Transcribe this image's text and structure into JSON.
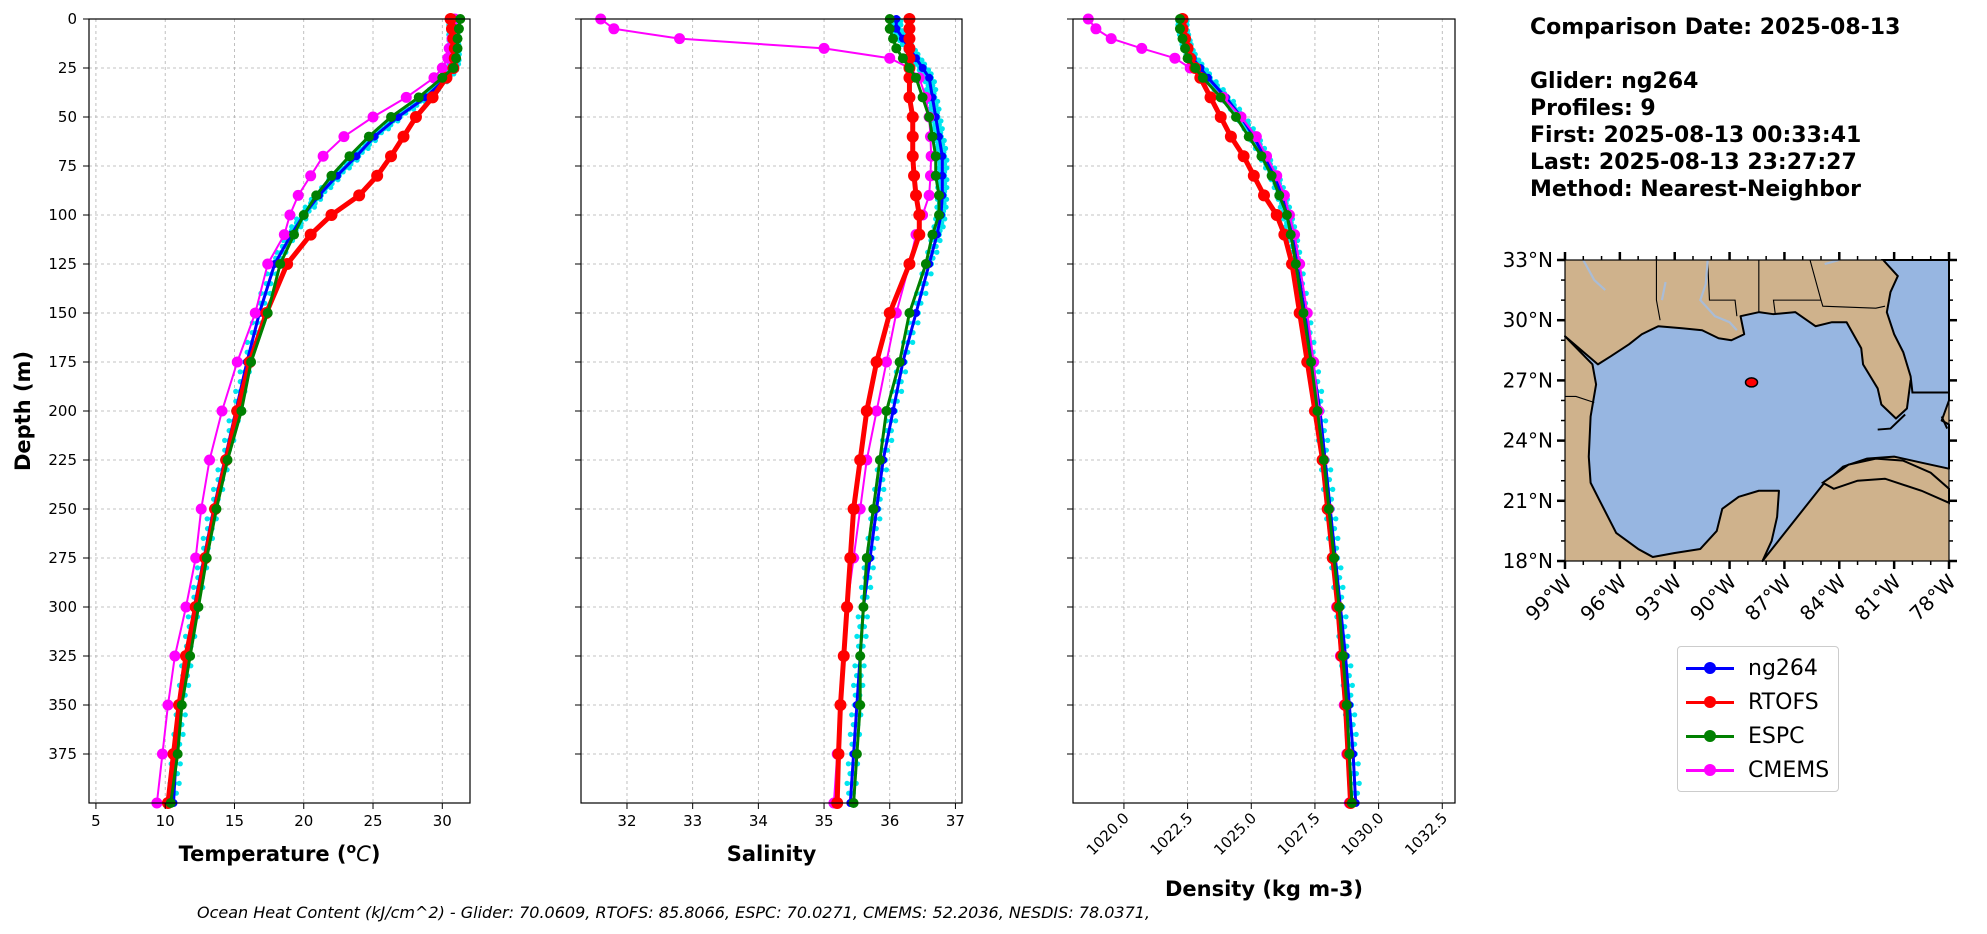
{
  "title": {
    "date_line": "Comparison Date: 2025-08-13",
    "glider_line": "Glider: ng264",
    "profiles_line": "Profiles: 9",
    "first_line": "First: 2025-08-13 00:33:41",
    "last_line": "Last: 2025-08-13 23:27:27",
    "method_line": "Method: Nearest-Neighbor"
  },
  "footer": "Ocean Heat Content (kJ/cm^2) - Glider: 70.0609,  RTOFS: 85.8066,  ESPC: 70.0271,  CMEMS: 52.2036,  NESDIS: 78.0371,",
  "legend": [
    {
      "label": "ng264",
      "color": "#0000ff"
    },
    {
      "label": "RTOFS",
      "color": "#ff0000"
    },
    {
      "label": "ESPC",
      "color": "#008000"
    },
    {
      "label": "CMEMS",
      "color": "#ff00ff"
    }
  ],
  "colors": {
    "glider": "#0000ff",
    "glider_alt": "#00e5ee",
    "rtofs": "#ff0000",
    "espc": "#008000",
    "cmems": "#ff00ff",
    "ocean": "#97b6e1",
    "land": "#cfb28c",
    "river": "#a9bcd6"
  },
  "map": {
    "lat_ticks": [
      "33°N",
      "30°N",
      "27°N",
      "24°N",
      "21°N",
      "18°N"
    ],
    "lon_ticks": [
      "99°W",
      "96°W",
      "93°W",
      "90°W",
      "87°W",
      "84°W",
      "81°W",
      "78°W"
    ],
    "lat_range": [
      18,
      33
    ],
    "lon_range": [
      -99,
      -78
    ],
    "glider_position": {
      "lon": -88.8,
      "lat": 26.9
    }
  },
  "chart_data": [
    {
      "type": "line",
      "title": "",
      "xlabel": "Temperature (°C)",
      "ylabel": "Depth (m)",
      "xlim": [
        4.5,
        32
      ],
      "ylim": [
        400,
        0
      ],
      "x_ticks": [
        "5",
        "10",
        "15",
        "20",
        "25",
        "30"
      ],
      "y_ticks": [
        "0",
        "25",
        "50",
        "75",
        "100",
        "125",
        "150",
        "175",
        "200",
        "225",
        "250",
        "275",
        "300",
        "325",
        "350",
        "375"
      ],
      "depth": [
        0,
        5,
        10,
        15,
        20,
        25,
        30,
        40,
        50,
        60,
        70,
        80,
        90,
        100,
        110,
        125,
        150,
        175,
        200,
        225,
        250,
        275,
        300,
        325,
        350,
        375,
        400
      ],
      "series": [
        {
          "name": "ng264",
          "values": [
            30.8,
            30.8,
            30.8,
            30.9,
            30.9,
            30.8,
            30.3,
            28.8,
            26.8,
            25.1,
            23.8,
            22.4,
            21.1,
            20.0,
            19.1,
            17.9,
            16.8,
            15.9,
            15.1,
            14.3,
            13.5,
            12.8,
            12.1,
            11.6,
            11.2,
            10.8,
            10.6
          ]
        },
        {
          "name": "RTOFS",
          "values": [
            30.6,
            30.7,
            30.8,
            30.9,
            30.9,
            30.8,
            30.3,
            29.3,
            28.1,
            27.2,
            26.3,
            25.3,
            24.0,
            22.0,
            20.5,
            18.8,
            17.3,
            16.1,
            15.2,
            14.4,
            13.6,
            12.9,
            12.2,
            11.5,
            11.0,
            10.6,
            10.2
          ]
        },
        {
          "name": "ESPC",
          "values": [
            31.3,
            31.2,
            31.1,
            31.1,
            31.0,
            30.8,
            30.0,
            28.3,
            26.3,
            24.7,
            23.3,
            22.0,
            20.9,
            20.0,
            19.3,
            18.3,
            17.4,
            16.2,
            15.5,
            14.5,
            13.7,
            13.0,
            12.4,
            11.8,
            11.2,
            10.9,
            10.4
          ]
        },
        {
          "name": "CMEMS",
          "values": [
            30.9,
            30.8,
            30.7,
            30.5,
            30.4,
            30.0,
            29.4,
            27.4,
            25.0,
            22.9,
            21.4,
            20.5,
            19.6,
            19.0,
            18.6,
            17.4,
            16.5,
            15.2,
            14.1,
            13.2,
            12.6,
            12.2,
            11.5,
            10.7,
            10.2,
            9.8,
            9.4
          ]
        }
      ]
    },
    {
      "type": "line",
      "title": "",
      "xlabel": "Salinity",
      "ylabel": "",
      "xlim": [
        31.3,
        37.1
      ],
      "ylim": [
        400,
        0
      ],
      "x_ticks": [
        "32",
        "33",
        "34",
        "35",
        "36",
        "37"
      ],
      "depth": [
        0,
        5,
        10,
        15,
        20,
        25,
        30,
        40,
        50,
        60,
        70,
        80,
        90,
        100,
        110,
        125,
        150,
        175,
        200,
        225,
        250,
        275,
        300,
        325,
        350,
        375,
        400
      ],
      "series": [
        {
          "name": "ng264",
          "values": [
            36.1,
            36.1,
            36.2,
            36.3,
            36.4,
            36.5,
            36.6,
            36.65,
            36.7,
            36.75,
            36.8,
            36.8,
            36.8,
            36.78,
            36.72,
            36.6,
            36.4,
            36.2,
            36.05,
            35.9,
            35.8,
            35.7,
            35.6,
            35.55,
            35.5,
            35.45,
            35.4
          ]
        },
        {
          "name": "RTOFS",
          "values": [
            36.3,
            36.3,
            36.3,
            36.3,
            36.3,
            36.3,
            36.3,
            36.3,
            36.35,
            36.35,
            36.35,
            36.37,
            36.4,
            36.45,
            36.45,
            36.3,
            36.0,
            35.8,
            35.65,
            35.55,
            35.45,
            35.4,
            35.35,
            35.3,
            35.25,
            35.22,
            35.2
          ]
        },
        {
          "name": "ESPC",
          "values": [
            36.0,
            36.0,
            36.05,
            36.1,
            36.2,
            36.3,
            36.4,
            36.5,
            36.6,
            36.65,
            36.7,
            36.7,
            36.75,
            36.75,
            36.65,
            36.55,
            36.3,
            36.15,
            35.95,
            35.85,
            35.75,
            35.65,
            35.6,
            35.55,
            35.55,
            35.5,
            35.45
          ]
        },
        {
          "name": "CMEMS",
          "values": [
            31.6,
            31.8,
            32.8,
            35.0,
            36.0,
            36.3,
            36.45,
            36.55,
            36.6,
            36.62,
            36.63,
            36.62,
            36.6,
            36.5,
            36.4,
            36.3,
            36.1,
            35.95,
            35.8,
            35.65,
            35.55,
            35.45,
            35.35,
            35.3,
            35.25,
            35.2,
            35.15
          ]
        }
      ]
    },
    {
      "type": "line",
      "title": "",
      "xlabel": "Density (kg m-3)",
      "ylabel": "",
      "xlim": [
        1018.0,
        1033.0
      ],
      "ylim": [
        400,
        0
      ],
      "x_ticks": [
        "1020.0",
        "1022.5",
        "1025.0",
        "1027.5",
        "1030.0",
        "1032.5"
      ],
      "depth": [
        0,
        5,
        10,
        15,
        20,
        25,
        30,
        40,
        50,
        60,
        70,
        80,
        90,
        100,
        110,
        125,
        150,
        175,
        200,
        225,
        250,
        275,
        300,
        325,
        350,
        375,
        400
      ],
      "series": [
        {
          "name": "ng264",
          "values": [
            1022.3,
            1022.3,
            1022.4,
            1022.5,
            1022.7,
            1023.0,
            1023.3,
            1024.0,
            1024.6,
            1025.1,
            1025.5,
            1025.9,
            1026.2,
            1026.4,
            1026.6,
            1026.8,
            1027.1,
            1027.4,
            1027.7,
            1027.9,
            1028.1,
            1028.3,
            1028.5,
            1028.7,
            1028.85,
            1029.0,
            1029.1
          ]
        },
        {
          "name": "RTOFS",
          "values": [
            1022.3,
            1022.3,
            1022.4,
            1022.5,
            1022.6,
            1022.8,
            1023.0,
            1023.4,
            1023.8,
            1024.2,
            1024.7,
            1025.1,
            1025.5,
            1026.0,
            1026.3,
            1026.6,
            1026.9,
            1027.2,
            1027.5,
            1027.8,
            1028.0,
            1028.2,
            1028.4,
            1028.55,
            1028.7,
            1028.8,
            1028.9
          ]
        },
        {
          "name": "ESPC",
          "values": [
            1022.2,
            1022.2,
            1022.3,
            1022.4,
            1022.5,
            1022.8,
            1023.1,
            1023.8,
            1024.4,
            1024.9,
            1025.4,
            1025.8,
            1026.1,
            1026.4,
            1026.55,
            1026.75,
            1027.05,
            1027.35,
            1027.6,
            1027.85,
            1028.05,
            1028.25,
            1028.45,
            1028.6,
            1028.75,
            1028.85,
            1028.95
          ]
        },
        {
          "name": "CMEMS",
          "values": [
            1018.6,
            1018.9,
            1019.5,
            1020.7,
            1022.0,
            1022.6,
            1023.0,
            1023.9,
            1024.6,
            1025.2,
            1025.6,
            1026.0,
            1026.3,
            1026.5,
            1026.7,
            1026.9,
            1027.2,
            1027.45,
            1027.65,
            1027.85,
            1028.05,
            1028.2,
            1028.35,
            1028.5,
            1028.65,
            1028.75,
            1028.85
          ]
        }
      ]
    }
  ]
}
